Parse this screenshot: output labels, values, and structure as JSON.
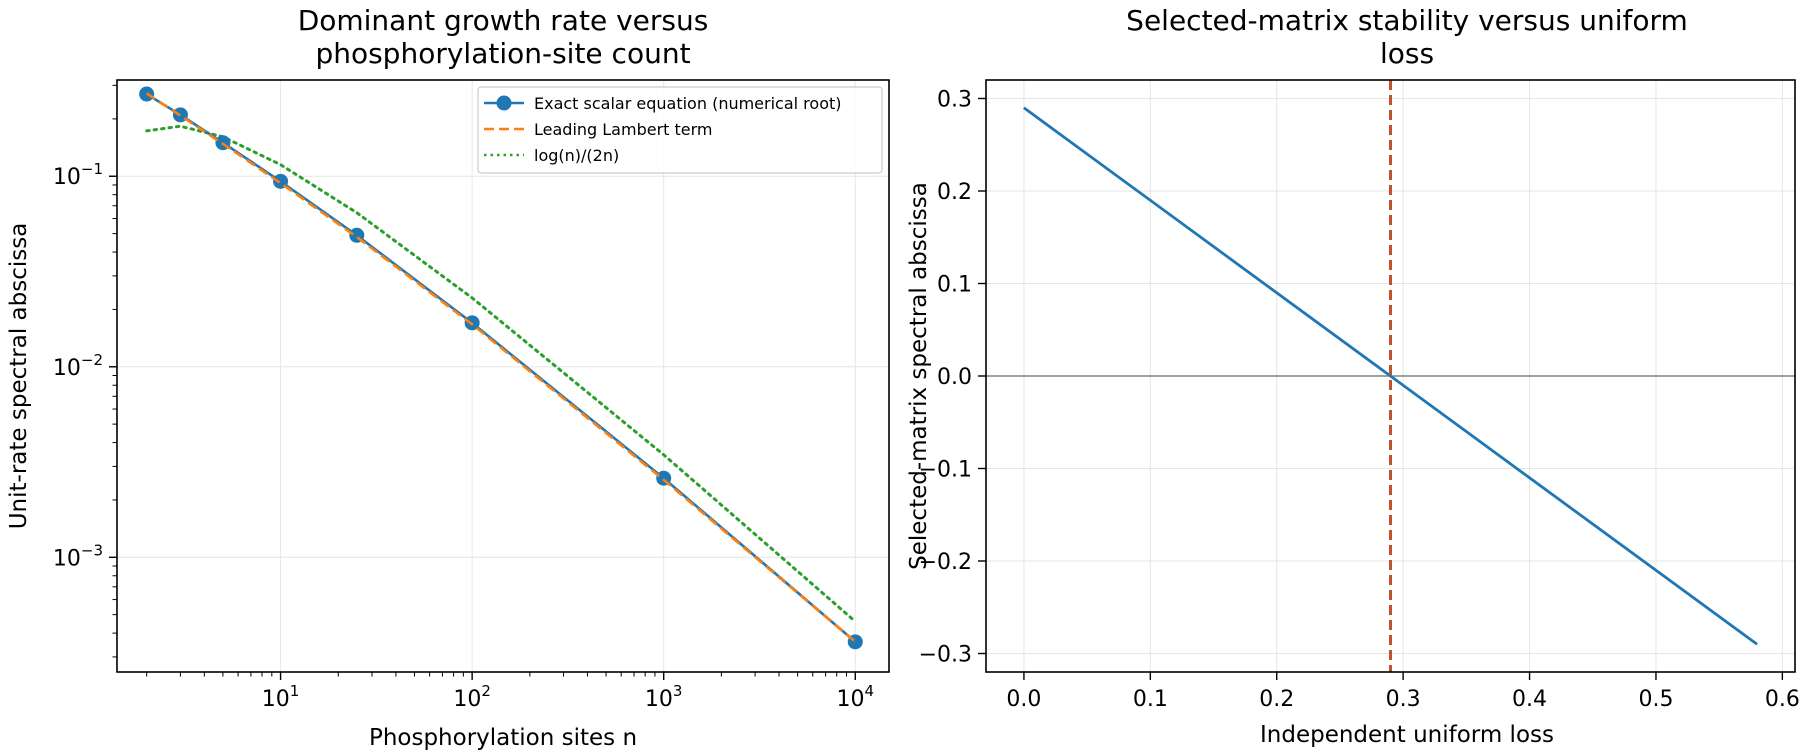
{
  "chart_data": [
    {
      "type": "line",
      "title_lines": [
        "Dominant growth rate versus",
        "phosphorylation-site count"
      ],
      "xlabel": "Phosphorylation sites n",
      "ylabel": "Unit-rate spectral abscissa",
      "xscale": "log",
      "yscale": "log",
      "xlim": [
        1.4,
        15000
      ],
      "ylim": [
        0.00025,
        0.32
      ],
      "xticks": [
        {
          "value": 10,
          "mant": "10",
          "exp": "1"
        },
        {
          "value": 100,
          "mant": "10",
          "exp": "2"
        },
        {
          "value": 1000,
          "mant": "10",
          "exp": "3"
        },
        {
          "value": 10000,
          "mant": "10",
          "exp": "4"
        }
      ],
      "yticks": [
        {
          "value": 0.001,
          "mant": "10",
          "exp": "−3"
        },
        {
          "value": 0.01,
          "mant": "10",
          "exp": "−2"
        },
        {
          "value": 0.1,
          "mant": "10",
          "exp": "−1"
        }
      ],
      "grid": true,
      "legend_position": "top-right",
      "series": [
        {
          "name": "Exact scalar equation (numerical root)",
          "style": "solid-markers",
          "color": "#1f77b4",
          "x": [
            2,
            3,
            5,
            10,
            25,
            100,
            1000,
            10000
          ],
          "y": [
            0.27,
            0.21,
            0.15,
            0.094,
            0.049,
            0.017,
            0.0026,
            0.00036
          ]
        },
        {
          "name": "Leading Lambert term",
          "style": "dashed",
          "color": "#ff7f0e",
          "x": [
            2,
            3,
            5,
            10,
            25,
            100,
            1000,
            10000
          ],
          "y": [
            0.272,
            0.208,
            0.148,
            0.092,
            0.048,
            0.0167,
            0.00255,
            0.00036
          ]
        },
        {
          "name": "log(n)/(2n)",
          "style": "dotted",
          "color": "#2ca02c",
          "x": [
            2,
            3,
            5,
            10,
            25,
            100,
            1000,
            10000
          ],
          "y": [
            0.173,
            0.183,
            0.161,
            0.115,
            0.0644,
            0.023,
            0.00345,
            0.00046
          ]
        }
      ]
    },
    {
      "type": "line",
      "title_lines": [
        "Selected-matrix stability versus uniform",
        "loss"
      ],
      "xlabel": "Independent uniform loss",
      "ylabel": "Selected-matrix spectral abscissa",
      "xscale": "linear",
      "yscale": "linear",
      "xlim": [
        -0.03,
        0.61
      ],
      "ylim": [
        -0.32,
        0.32
      ],
      "xticks": [
        {
          "value": 0.0,
          "label": "0.0"
        },
        {
          "value": 0.1,
          "label": "0.1"
        },
        {
          "value": 0.2,
          "label": "0.2"
        },
        {
          "value": 0.3,
          "label": "0.3"
        },
        {
          "value": 0.4,
          "label": "0.4"
        },
        {
          "value": 0.5,
          "label": "0.5"
        },
        {
          "value": 0.6,
          "label": "0.6"
        }
      ],
      "yticks": [
        {
          "value": -0.3,
          "label": "−0.3"
        },
        {
          "value": -0.2,
          "label": "−0.2"
        },
        {
          "value": -0.1,
          "label": "−0.1"
        },
        {
          "value": 0.0,
          "label": "0.0"
        },
        {
          "value": 0.1,
          "label": "0.1"
        },
        {
          "value": 0.2,
          "label": "0.2"
        },
        {
          "value": 0.3,
          "label": "0.3"
        }
      ],
      "grid": true,
      "series": [
        {
          "style": "solid",
          "color": "#1f77b4",
          "x": [
            0.0,
            0.58
          ],
          "y": [
            0.29,
            -0.29
          ]
        }
      ],
      "hline": {
        "y": 0.0,
        "color": "#808080"
      },
      "vline": {
        "x": 0.29,
        "color": "#c0522d"
      }
    }
  ]
}
